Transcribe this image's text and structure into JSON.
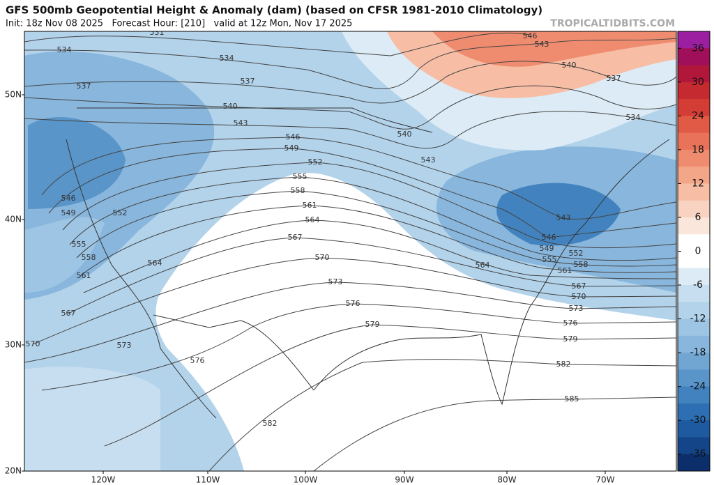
{
  "header": {
    "title": "GFS 500mb Geopotential Height & Anomaly (dam) (based on CFSR 1981-2010 Climatology)",
    "subtitle": "Init: 18z Nov 08 2025   Forecast Hour: [210]   valid at 12z Mon, Nov 17 2025",
    "watermark": "TROPICALTIDBITS.COM"
  },
  "map": {
    "latitude_labels": [
      "50N",
      "40N",
      "30N",
      "20N"
    ],
    "longitude_labels": [
      "120W",
      "110W",
      "100W",
      "90W",
      "80W",
      "70W"
    ],
    "contour_labels": [
      531,
      534,
      534,
      537,
      537,
      540,
      543,
      546,
      549,
      552,
      555,
      558,
      561,
      564,
      567,
      570,
      573,
      576,
      579,
      582,
      585,
      582,
      546,
      549,
      552,
      555,
      558,
      561,
      564,
      567,
      570,
      573,
      576,
      540,
      543,
      546,
      543,
      540,
      537,
      534,
      543,
      546,
      549,
      552,
      555,
      558,
      561,
      564,
      567,
      570,
      573,
      576,
      579
    ]
  },
  "colorbar": {
    "lim": [
      -39,
      39
    ],
    "ticks": [
      36,
      30,
      24,
      18,
      12,
      6,
      0,
      -6,
      -12,
      -18,
      -24,
      -30,
      -36
    ],
    "colors": [
      "#9b1fa0",
      "#a0105a",
      "#b0173a",
      "#c42a30",
      "#d43d35",
      "#e05a45",
      "#e8735a",
      "#ef8c70",
      "#f4a688",
      "#f7bea5",
      "#f9d3c2",
      "#fbe6dc",
      "#ffffff",
      "#ffffff",
      "#dcebf5",
      "#c6def0",
      "#b3d3eb",
      "#9ec5e4",
      "#88b6dc",
      "#71a6d3",
      "#5995c9",
      "#4283bf",
      "#2d6fb2",
      "#1d5aa0",
      "#144589",
      "#0c2f6c"
    ]
  }
}
